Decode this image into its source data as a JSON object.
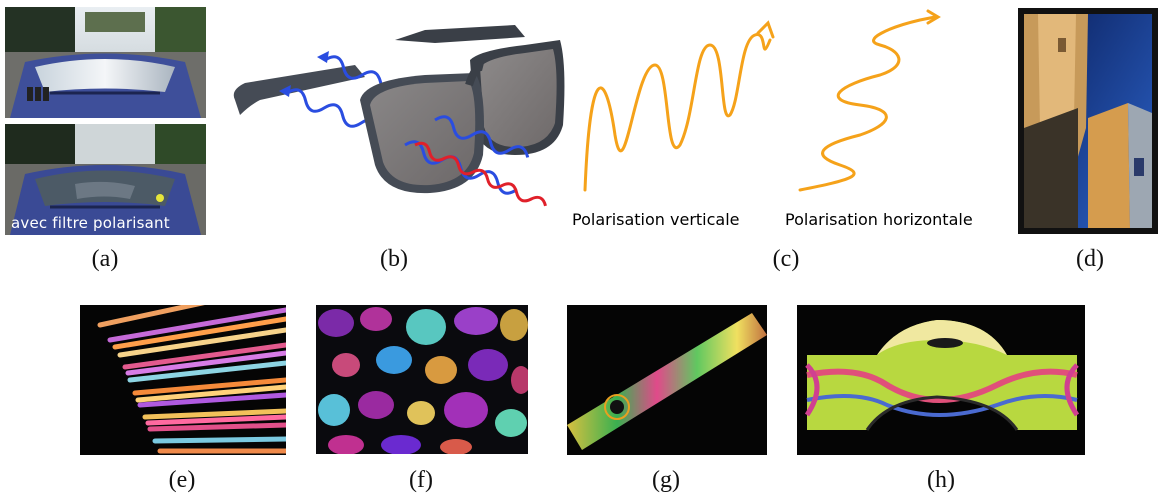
{
  "captions": {
    "a": "(a)",
    "b": "(b)",
    "c": "(c)",
    "d": "(d)",
    "e": "(e)",
    "f": "(f)",
    "g": "(g)",
    "h": "(h)"
  },
  "panel_a": {
    "overlay": "avec filtre polarisant"
  },
  "panel_c": {
    "vertical": "Polarisation verticale",
    "horizontal": "Polarisation horizontale"
  },
  "colors": {
    "wave_blue": "#2a4de0",
    "wave_red": "#e0202a",
    "wave_orange": "#f5a21a",
    "car_blue": "#3e4f9a"
  }
}
